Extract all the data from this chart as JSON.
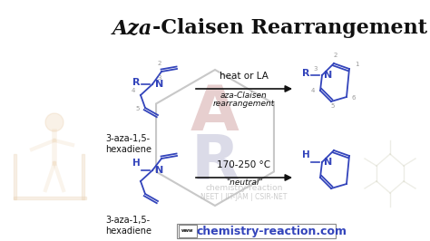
{
  "title_italic": "Aza",
  "title_rest": "-Claisen Rearrangement",
  "bg_color": "#ffffff",
  "blue": "#3344bb",
  "black": "#111111",
  "gray": "#999999",
  "lightgray": "#c8c8c8",
  "hex_C_color": "#d4a8a8",
  "hex_R_color": "#b0b0cc",
  "top_arrow_label1": "heat or LA",
  "top_arrow_label2": "aza-Claisen",
  "top_arrow_label3": "rearrangement",
  "bottom_arrow_label1": "170-250 °C",
  "bottom_arrow_label2": "\"neutral\"",
  "top_label_left": "3-aza-1,5-\nhexadiene",
  "bottom_label_left": "3-aza-1,5-\nhexadiene",
  "watermark1": "chemistry-reaction",
  "watermark2": "NEET | IIT-JAM | CSIR-NET",
  "website": "chemistry-reaction.com",
  "figsize": [
    4.74,
    2.66
  ],
  "dpi": 100
}
